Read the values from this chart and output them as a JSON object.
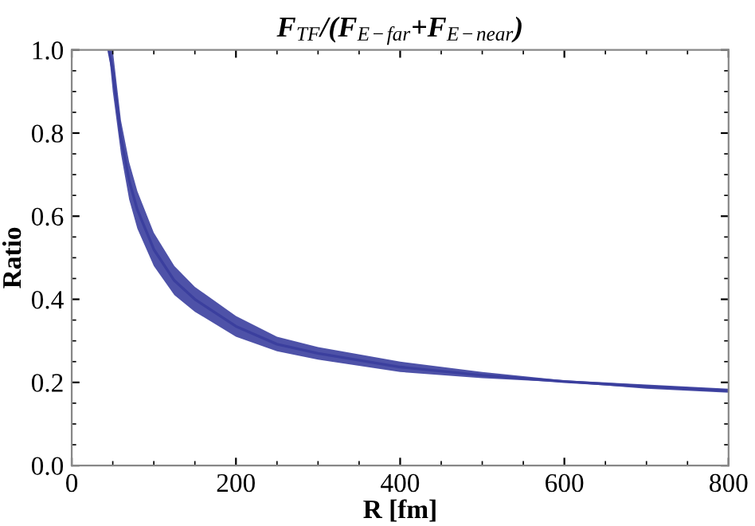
{
  "chart_data": {
    "type": "line",
    "title": "F$_{TF}$/(F$_{E−far}$+F$_{E−near}$)",
    "xlabel": "R [fm]",
    "ylabel": "Ratio",
    "series": [
      {
        "color": "#3b3f9e",
        "x": [
          45,
          50,
          60,
          70,
          80,
          100,
          125,
          150,
          200,
          250,
          300,
          400,
          500,
          600,
          700,
          800
        ],
        "values": [
          1.0,
          0.95,
          0.79,
          0.685,
          0.615,
          0.52,
          0.445,
          0.4,
          0.335,
          0.292,
          0.27,
          0.237,
          0.217,
          0.202,
          0.19,
          0.18
        ],
        "lower": [
          1.0,
          0.9,
          0.75,
          0.64,
          0.57,
          0.48,
          0.41,
          0.37,
          0.31,
          0.275,
          0.255,
          0.225,
          0.21,
          0.2,
          0.185,
          0.175
        ],
        "upper": [
          1.0,
          1.0,
          0.83,
          0.73,
          0.66,
          0.56,
          0.48,
          0.43,
          0.36,
          0.31,
          0.285,
          0.25,
          0.225,
          0.205,
          0.195,
          0.185
        ]
      }
    ],
    "xlim": [
      0,
      800
    ],
    "xticks": [
      0,
      200,
      400,
      600,
      800
    ],
    "ylim": [
      0,
      1.0
    ],
    "yticks": [
      {
        "value": 0,
        "label": "0.0"
      },
      0.2,
      0.4,
      0.6,
      0.8,
      {
        "value": 1.0,
        "label": "1.0"
      }
    ],
    "grid": false,
    "marker": "none",
    "line_style": "solid"
  }
}
